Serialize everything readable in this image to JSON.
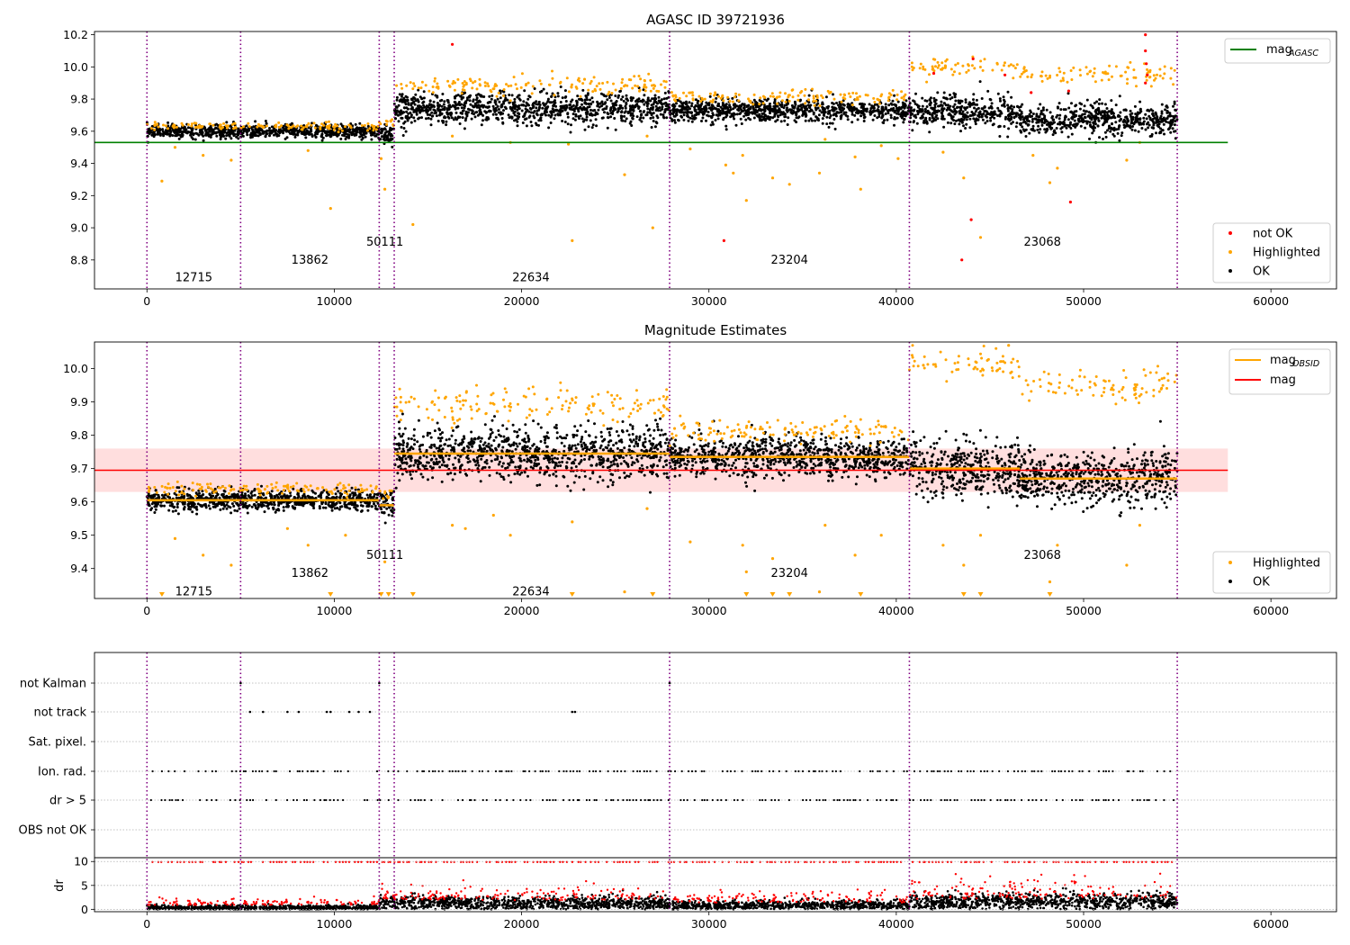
{
  "chart_data": [
    {
      "type": "scatter",
      "title": "AGASC ID 39721936",
      "xlabel": "",
      "ylabel": "",
      "xlim": [
        -2800,
        63500
      ],
      "ylim": [
        8.62,
        10.22
      ],
      "xticks": [
        0,
        10000,
        20000,
        30000,
        40000,
        50000,
        60000
      ],
      "yticks": [
        8.8,
        9.0,
        9.2,
        9.4,
        9.6,
        9.8,
        10.0,
        10.2
      ],
      "ytick_labels": [
        "8.8",
        "9.0",
        "9.2",
        "9.4",
        "9.6",
        "9.8",
        "10.0",
        "10.2"
      ],
      "xtick_labels": [
        "0",
        "10000",
        "20000",
        "30000",
        "40000",
        "50000",
        "60000"
      ],
      "grid": false,
      "legend_top": {
        "placement": "top-right",
        "entries": [
          {
            "label_main": "mag",
            "label_sub": "AGASC",
            "color": "#008000",
            "kind": "line"
          }
        ]
      },
      "legend_bottom": {
        "placement": "bottom-right",
        "entries": [
          {
            "label": "not OK",
            "color": "#ff0000"
          },
          {
            "label": "Highlighted",
            "color": "#ffa500"
          },
          {
            "label": "OK",
            "color": "#000000"
          }
        ]
      },
      "mag_agasc": 9.53,
      "segments": [
        {
          "x0": 0,
          "x1": 5000,
          "mean": 9.6,
          "spread": 0.02,
          "hl_above": 9.63,
          "hl_below": null
        },
        {
          "x0": 5000,
          "x1": 12400,
          "mean": 9.6,
          "spread": 0.02,
          "hl_above": 9.63,
          "hl_below": null
        },
        {
          "x0": 12400,
          "x1": 13200,
          "mean": 9.58,
          "spread": 0.03,
          "hl_above": 9.64,
          "hl_below": null
        },
        {
          "x0": 13200,
          "x1": 27900,
          "mean": 9.74,
          "spread": 0.05,
          "hl_above": 9.88,
          "hl_below": null
        },
        {
          "x0": 27900,
          "x1": 40700,
          "mean": 9.73,
          "spread": 0.035,
          "hl_above": 9.81,
          "hl_below": null
        },
        {
          "x0": 40700,
          "x1": 46600,
          "mean": 9.72,
          "spread": 0.05,
          "hl_above": 10.0,
          "hl_below": null
        },
        {
          "x0": 46600,
          "x1": 55000,
          "mean": 9.67,
          "spread": 0.05,
          "hl_above": 9.95,
          "hl_below": null
        }
      ],
      "vlines": [
        0,
        5000,
        12400,
        13200,
        27900,
        40700,
        55000
      ],
      "obsid_labels": [
        {
          "text": "12715",
          "x": 2500,
          "y": 8.69
        },
        {
          "text": "13862",
          "x": 8700,
          "y": 8.8
        },
        {
          "text": "50111",
          "x": 12700,
          "y": 8.91
        },
        {
          "text": "22634",
          "x": 20500,
          "y": 8.69
        },
        {
          "text": "23204",
          "x": 34300,
          "y": 8.8
        },
        {
          "text": "23068",
          "x": 47800,
          "y": 8.91
        }
      ],
      "outliers_highlighted": [
        {
          "x": 800,
          "y": 9.29
        },
        {
          "x": 1500,
          "y": 9.5
        },
        {
          "x": 3000,
          "y": 9.45
        },
        {
          "x": 4500,
          "y": 9.42
        },
        {
          "x": 8600,
          "y": 9.48
        },
        {
          "x": 9800,
          "y": 9.12
        },
        {
          "x": 12500,
          "y": 9.43
        },
        {
          "x": 12700,
          "y": 9.24
        },
        {
          "x": 14200,
          "y": 9.02
        },
        {
          "x": 16300,
          "y": 9.57
        },
        {
          "x": 19400,
          "y": 9.53
        },
        {
          "x": 22700,
          "y": 8.92
        },
        {
          "x": 22500,
          "y": 9.52
        },
        {
          "x": 25500,
          "y": 9.33
        },
        {
          "x": 27000,
          "y": 9.0
        },
        {
          "x": 26700,
          "y": 9.57
        },
        {
          "x": 29000,
          "y": 9.49
        },
        {
          "x": 30900,
          "y": 9.39
        },
        {
          "x": 31300,
          "y": 9.34
        },
        {
          "x": 32000,
          "y": 9.17
        },
        {
          "x": 31800,
          "y": 9.45
        },
        {
          "x": 33400,
          "y": 9.31
        },
        {
          "x": 34300,
          "y": 9.27
        },
        {
          "x": 35900,
          "y": 9.34
        },
        {
          "x": 36200,
          "y": 9.55
        },
        {
          "x": 37800,
          "y": 9.44
        },
        {
          "x": 38100,
          "y": 9.24
        },
        {
          "x": 39200,
          "y": 9.51
        },
        {
          "x": 40100,
          "y": 9.43
        },
        {
          "x": 42500,
          "y": 9.47
        },
        {
          "x": 43600,
          "y": 9.31
        },
        {
          "x": 44500,
          "y": 8.94
        },
        {
          "x": 47300,
          "y": 9.45
        },
        {
          "x": 48200,
          "y": 9.28
        },
        {
          "x": 48600,
          "y": 9.37
        },
        {
          "x": 52300,
          "y": 9.42
        },
        {
          "x": 53000,
          "y": 9.53
        }
      ],
      "outliers_not_ok": [
        {
          "x": 16300,
          "y": 10.14
        },
        {
          "x": 30800,
          "y": 8.92
        },
        {
          "x": 42000,
          "y": 9.96
        },
        {
          "x": 43500,
          "y": 8.8
        },
        {
          "x": 44000,
          "y": 9.05
        },
        {
          "x": 44100,
          "y": 10.05
        },
        {
          "x": 45800,
          "y": 9.95
        },
        {
          "x": 47200,
          "y": 9.84
        },
        {
          "x": 49300,
          "y": 9.16
        },
        {
          "x": 49200,
          "y": 9.85
        },
        {
          "x": 53300,
          "y": 10.2
        },
        {
          "x": 53300,
          "y": 10.1
        },
        {
          "x": 53350,
          "y": 10.02
        },
        {
          "x": 53400,
          "y": 9.95
        },
        {
          "x": 53300,
          "y": 9.9
        }
      ]
    },
    {
      "type": "scatter",
      "title": "Magnitude Estimates",
      "xlabel": "",
      "ylabel": "",
      "xlim": [
        -2800,
        63500
      ],
      "ylim": [
        9.31,
        10.08
      ],
      "xticks": [
        0,
        10000,
        20000,
        30000,
        40000,
        50000,
        60000
      ],
      "xtick_labels": [
        "0",
        "10000",
        "20000",
        "30000",
        "40000",
        "50000",
        "60000"
      ],
      "yticks": [
        9.4,
        9.5,
        9.6,
        9.7,
        9.8,
        9.9,
        10.0
      ],
      "ytick_labels": [
        "9.4",
        "9.5",
        "9.6",
        "9.7",
        "9.8",
        "9.9",
        "10.0"
      ],
      "grid": false,
      "legend_top": {
        "placement": "top-right",
        "entries": [
          {
            "label_main": "mag",
            "label_sub": "OBSID",
            "color": "#ffa500",
            "kind": "line"
          },
          {
            "label_main": "mag",
            "label_sub": "",
            "color": "#ff0000",
            "kind": "line"
          }
        ]
      },
      "legend_bottom": {
        "placement": "bottom-right",
        "entries": [
          {
            "label": "Highlighted",
            "color": "#ffa500"
          },
          {
            "label": "OK",
            "color": "#000000"
          }
        ]
      },
      "mag": 9.695,
      "mag_band": [
        9.63,
        9.76
      ],
      "band_xmax": 57700,
      "segments": [
        {
          "x0": 0,
          "x1": 5000,
          "mean": 9.605,
          "spread": 0.015,
          "hl_above": 9.64,
          "hl_below": null
        },
        {
          "x0": 5000,
          "x1": 12400,
          "mean": 9.605,
          "spread": 0.015,
          "hl_above": 9.64,
          "hl_below": null
        },
        {
          "x0": 12400,
          "x1": 13200,
          "mean": 9.59,
          "spread": 0.02,
          "hl_above": 9.63,
          "hl_below": null
        },
        {
          "x0": 13200,
          "x1": 27900,
          "mean": 9.745,
          "spread": 0.04,
          "hl_above": 9.89,
          "hl_below": null
        },
        {
          "x0": 27900,
          "x1": 40700,
          "mean": 9.735,
          "spread": 0.03,
          "hl_above": 9.81,
          "hl_below": null
        },
        {
          "x0": 40700,
          "x1": 46600,
          "mean": 9.7,
          "spread": 0.04,
          "hl_above": 10.01,
          "hl_below": null
        },
        {
          "x0": 46600,
          "x1": 55000,
          "mean": 9.67,
          "spread": 0.04,
          "hl_above": 9.95,
          "hl_below": null
        }
      ],
      "vlines": [
        0,
        5000,
        12400,
        13200,
        27900,
        40700,
        55000
      ],
      "obsid_labels": [
        {
          "text": "12715",
          "x": 2500,
          "y": 9.33
        },
        {
          "text": "13862",
          "x": 8700,
          "y": 9.385
        },
        {
          "text": "50111",
          "x": 12700,
          "y": 9.44
        },
        {
          "text": "22634",
          "x": 20500,
          "y": 9.33
        },
        {
          "text": "23204",
          "x": 34300,
          "y": 9.385
        },
        {
          "text": "23068",
          "x": 47800,
          "y": 9.44
        }
      ],
      "outliers_highlighted": [
        {
          "x": 1500,
          "y": 9.49
        },
        {
          "x": 3000,
          "y": 9.44
        },
        {
          "x": 4500,
          "y": 9.41
        },
        {
          "x": 7500,
          "y": 9.52
        },
        {
          "x": 8600,
          "y": 9.47
        },
        {
          "x": 10600,
          "y": 9.5
        },
        {
          "x": 12700,
          "y": 9.42
        },
        {
          "x": 16300,
          "y": 9.53
        },
        {
          "x": 17000,
          "y": 9.52
        },
        {
          "x": 18500,
          "y": 9.56
        },
        {
          "x": 22700,
          "y": 9.54
        },
        {
          "x": 25500,
          "y": 9.33
        },
        {
          "x": 26700,
          "y": 9.58
        },
        {
          "x": 29000,
          "y": 9.48
        },
        {
          "x": 31800,
          "y": 9.47
        },
        {
          "x": 32000,
          "y": 9.39
        },
        {
          "x": 33400,
          "y": 9.43
        },
        {
          "x": 35900,
          "y": 9.33
        },
        {
          "x": 36200,
          "y": 9.53
        },
        {
          "x": 37800,
          "y": 9.44
        },
        {
          "x": 39200,
          "y": 9.5
        },
        {
          "x": 42500,
          "y": 9.47
        },
        {
          "x": 43600,
          "y": 9.41
        },
        {
          "x": 44500,
          "y": 9.5
        },
        {
          "x": 48200,
          "y": 9.36
        },
        {
          "x": 48600,
          "y": 9.47
        },
        {
          "x": 52300,
          "y": 9.41
        },
        {
          "x": 53000,
          "y": 9.53
        },
        {
          "x": 19400,
          "y": 9.5
        },
        {
          "x": 46000,
          "y": 10.07
        }
      ],
      "down_arrows_x": [
        800,
        9800,
        12500,
        12900,
        14200,
        22700,
        27000,
        32000,
        33400,
        34300,
        38100,
        43600,
        44500,
        48200
      ]
    },
    {
      "type": "scatter",
      "title": "",
      "xlabel": "",
      "xlim": [
        -2800,
        63500
      ],
      "xticks": [
        0,
        10000,
        20000,
        30000,
        40000,
        50000,
        60000
      ],
      "xtick_labels": [
        "0",
        "10000",
        "20000",
        "30000",
        "40000",
        "50000",
        "60000"
      ],
      "flag_rows": [
        "not Kalman",
        "not track",
        "Sat. pixel.",
        "Ion. rad.",
        "dr > 5",
        "OBS not OK"
      ],
      "not_kalman_x": [
        5000,
        12400,
        27900
      ],
      "not_track_x": [
        5500,
        6200,
        7500,
        8100,
        9600,
        9800,
        10800,
        11300,
        11900,
        22700,
        22850
      ],
      "flag_point_rate": {
        "ion_rad": 0.9,
        "dr_gt_5": 0.9
      },
      "dr_ylabel": "dr",
      "dr_yticks": [
        0,
        5,
        10
      ],
      "dr_ylim": [
        -0.5,
        10.8
      ],
      "dr_ytick_labels": [
        "0",
        "5",
        "10"
      ],
      "dr_segments": [
        {
          "x0": 0,
          "x1": 12400,
          "mean": 0.3,
          "spread": 0.3
        },
        {
          "x0": 12400,
          "x1": 27900,
          "mean": 1.3,
          "spread": 0.7
        },
        {
          "x0": 27900,
          "x1": 40700,
          "mean": 0.8,
          "spread": 0.5
        },
        {
          "x0": 40700,
          "x1": 55000,
          "mean": 1.6,
          "spread": 0.9
        }
      ],
      "vlines": [
        0,
        5000,
        12400,
        13200,
        27900,
        40700,
        55000
      ]
    }
  ],
  "colors": {
    "ok": "#000000",
    "highlighted": "#ffa500",
    "not_ok": "#ff0000",
    "agasc_line": "#008000",
    "obsid_line": "#ffa500",
    "mag_line": "#ff0000",
    "mag_band": "#ffd0d0",
    "vline": "#800080",
    "flag_grid": "#b0b0b0",
    "overlap": "#3a1a00"
  }
}
